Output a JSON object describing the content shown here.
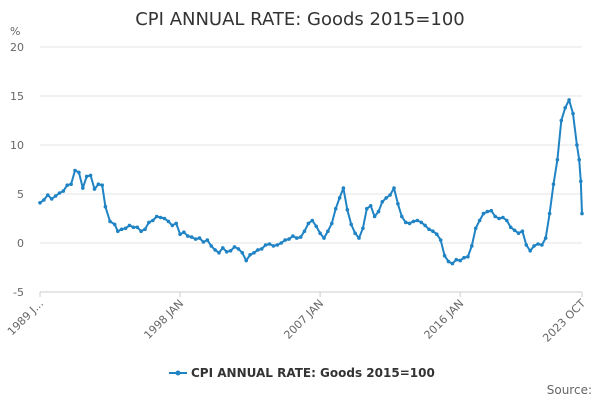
{
  "chart_data": {
    "type": "line",
    "title": "CPI ANNUAL RATE: Goods 2015=100",
    "ylabel": "%",
    "ylim": [
      -5,
      20
    ],
    "y_ticks": [
      "-5",
      "0",
      "5",
      "10",
      "15",
      "20"
    ],
    "x_ticks": [
      "1989 J...",
      "1998 JAN",
      "2007 JAN",
      "2016 JAN",
      "2023 OCT"
    ],
    "grid": true,
    "legend_position": "bottom",
    "source_label": "Source:",
    "color": "#1f83c4",
    "series": [
      {
        "name": "CPI ANNUAL RATE: Goods 2015=100",
        "points": [
          [
            1989.0,
            4.1
          ],
          [
            1989.25,
            4.4
          ],
          [
            1989.5,
            4.9
          ],
          [
            1989.75,
            4.5
          ],
          [
            1990.0,
            4.8
          ],
          [
            1990.25,
            5.1
          ],
          [
            1990.5,
            5.3
          ],
          [
            1990.75,
            5.9
          ],
          [
            1991.0,
            6.0
          ],
          [
            1991.25,
            7.4
          ],
          [
            1991.5,
            7.2
          ],
          [
            1991.75,
            5.6
          ],
          [
            1992.0,
            6.8
          ],
          [
            1992.25,
            6.9
          ],
          [
            1992.5,
            5.5
          ],
          [
            1992.75,
            6.0
          ],
          [
            1993.0,
            5.9
          ],
          [
            1993.2,
            3.7
          ],
          [
            1993.5,
            2.2
          ],
          [
            1993.8,
            1.9
          ],
          [
            1994.0,
            1.2
          ],
          [
            1994.25,
            1.4
          ],
          [
            1994.5,
            1.5
          ],
          [
            1994.75,
            1.8
          ],
          [
            1995.0,
            1.6
          ],
          [
            1995.25,
            1.6
          ],
          [
            1995.5,
            1.2
          ],
          [
            1995.75,
            1.4
          ],
          [
            1996.0,
            2.1
          ],
          [
            1996.25,
            2.3
          ],
          [
            1996.5,
            2.7
          ],
          [
            1996.75,
            2.6
          ],
          [
            1997.0,
            2.5
          ],
          [
            1997.25,
            2.2
          ],
          [
            1997.5,
            1.8
          ],
          [
            1997.75,
            2.0
          ],
          [
            1998.0,
            0.9
          ],
          [
            1998.25,
            1.1
          ],
          [
            1998.5,
            0.7
          ],
          [
            1998.75,
            0.6
          ],
          [
            1999.0,
            0.4
          ],
          [
            1999.25,
            0.5
          ],
          [
            1999.5,
            0.1
          ],
          [
            1999.75,
            0.3
          ],
          [
            2000.0,
            -0.3
          ],
          [
            2000.25,
            -0.7
          ],
          [
            2000.5,
            -1.0
          ],
          [
            2000.75,
            -0.5
          ],
          [
            2001.0,
            -0.9
          ],
          [
            2001.25,
            -0.8
          ],
          [
            2001.5,
            -0.4
          ],
          [
            2001.75,
            -0.6
          ],
          [
            2002.0,
            -1.0
          ],
          [
            2002.25,
            -1.8
          ],
          [
            2002.5,
            -1.2
          ],
          [
            2002.75,
            -1.0
          ],
          [
            2003.0,
            -0.7
          ],
          [
            2003.25,
            -0.6
          ],
          [
            2003.5,
            -0.2
          ],
          [
            2003.75,
            -0.1
          ],
          [
            2004.0,
            -0.3
          ],
          [
            2004.25,
            -0.2
          ],
          [
            2004.5,
            0.0
          ],
          [
            2004.75,
            0.3
          ],
          [
            2005.0,
            0.4
          ],
          [
            2005.25,
            0.7
          ],
          [
            2005.5,
            0.5
          ],
          [
            2005.75,
            0.6
          ],
          [
            2006.0,
            1.2
          ],
          [
            2006.25,
            2.0
          ],
          [
            2006.5,
            2.3
          ],
          [
            2006.75,
            1.7
          ],
          [
            2007.0,
            1.0
          ],
          [
            2007.25,
            0.5
          ],
          [
            2007.5,
            1.2
          ],
          [
            2007.75,
            2.0
          ],
          [
            2008.0,
            3.5
          ],
          [
            2008.25,
            4.6
          ],
          [
            2008.5,
            5.6
          ],
          [
            2008.75,
            3.4
          ],
          [
            2009.0,
            1.9
          ],
          [
            2009.25,
            1.0
          ],
          [
            2009.5,
            0.5
          ],
          [
            2009.75,
            1.5
          ],
          [
            2010.0,
            3.5
          ],
          [
            2010.25,
            3.8
          ],
          [
            2010.5,
            2.7
          ],
          [
            2010.75,
            3.2
          ],
          [
            2011.0,
            4.2
          ],
          [
            2011.25,
            4.6
          ],
          [
            2011.5,
            4.9
          ],
          [
            2011.75,
            5.6
          ],
          [
            2012.0,
            4.0
          ],
          [
            2012.25,
            2.7
          ],
          [
            2012.5,
            2.1
          ],
          [
            2012.75,
            2.0
          ],
          [
            2013.0,
            2.2
          ],
          [
            2013.25,
            2.3
          ],
          [
            2013.5,
            2.1
          ],
          [
            2013.75,
            1.8
          ],
          [
            2014.0,
            1.4
          ],
          [
            2014.25,
            1.2
          ],
          [
            2014.5,
            0.9
          ],
          [
            2014.75,
            0.3
          ],
          [
            2015.0,
            -1.3
          ],
          [
            2015.25,
            -1.9
          ],
          [
            2015.5,
            -2.1
          ],
          [
            2015.75,
            -1.7
          ],
          [
            2016.0,
            -1.8
          ],
          [
            2016.25,
            -1.5
          ],
          [
            2016.5,
            -1.4
          ],
          [
            2016.75,
            -0.3
          ],
          [
            2017.0,
            1.5
          ],
          [
            2017.25,
            2.3
          ],
          [
            2017.5,
            3.0
          ],
          [
            2017.75,
            3.2
          ],
          [
            2018.0,
            3.3
          ],
          [
            2018.25,
            2.7
          ],
          [
            2018.5,
            2.5
          ],
          [
            2018.75,
            2.6
          ],
          [
            2019.0,
            2.3
          ],
          [
            2019.25,
            1.6
          ],
          [
            2019.5,
            1.3
          ],
          [
            2019.75,
            1.0
          ],
          [
            2020.0,
            1.2
          ],
          [
            2020.25,
            -0.2
          ],
          [
            2020.5,
            -0.8
          ],
          [
            2020.75,
            -0.3
          ],
          [
            2021.0,
            -0.1
          ],
          [
            2021.25,
            -0.2
          ],
          [
            2021.5,
            0.5
          ],
          [
            2021.75,
            3.0
          ],
          [
            2022.0,
            6.0
          ],
          [
            2022.25,
            8.5
          ],
          [
            2022.5,
            12.5
          ],
          [
            2022.75,
            13.8
          ],
          [
            2023.0,
            14.6
          ],
          [
            2023.25,
            13.2
          ],
          [
            2023.5,
            10.0
          ],
          [
            2023.65,
            8.5
          ],
          [
            2023.75,
            6.3
          ],
          [
            2023.83,
            3.0
          ]
        ]
      }
    ]
  }
}
